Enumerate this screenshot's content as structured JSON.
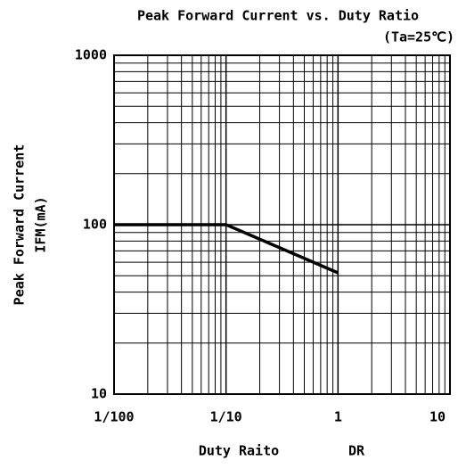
{
  "chart_data": {
    "type": "line",
    "title": "Peak Forward Current vs. Duty Ratio",
    "subtitle": "(Ta=25℃)",
    "y_label_lines": [
      "Peak Forward Current",
      "IFM(mA)"
    ],
    "xlabel": "Duty Raito",
    "xlabel_symbol": "DR",
    "x": [
      0.01,
      0.1,
      1
    ],
    "y": [
      100,
      100,
      52
    ],
    "color": "#000000",
    "xscale": "log",
    "yscale": "log",
    "xlim": [
      0.01,
      10
    ],
    "ylim": [
      10,
      1000
    ],
    "xticks": [
      {
        "value": 0.01,
        "label": "1/100"
      },
      {
        "value": 0.1,
        "label": "1/10"
      },
      1,
      10
    ],
    "yticks": [
      10,
      100,
      1000
    ],
    "grid": true
  }
}
